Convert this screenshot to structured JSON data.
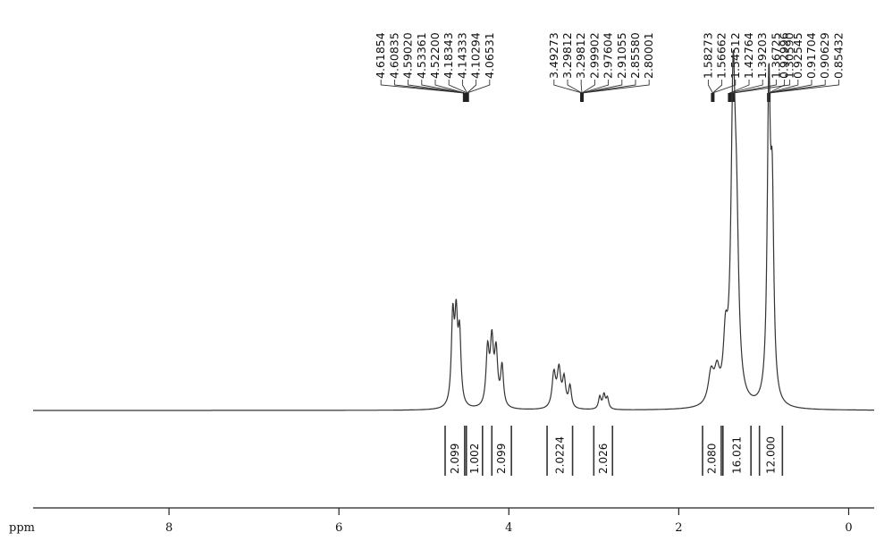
{
  "chart_data": {
    "type": "line",
    "title": "",
    "xlabel": "ppm",
    "ylabel": "",
    "x_reversed": true,
    "xlim": [
      9.6,
      -0.3
    ],
    "x_ticks": [
      8,
      6,
      4,
      2,
      0
    ],
    "x_tick_labels": [
      "8",
      "6",
      "4",
      "2",
      "0"
    ],
    "grid": false,
    "signals": [
      {
        "shift": 4.66,
        "height": 0.28,
        "width": 0.02
      },
      {
        "shift": 4.62,
        "height": 0.26,
        "width": 0.02
      },
      {
        "shift": 4.58,
        "height": 0.22,
        "width": 0.02
      },
      {
        "shift": 4.25,
        "height": 0.18,
        "width": 0.022
      },
      {
        "shift": 4.2,
        "height": 0.2,
        "width": 0.022
      },
      {
        "shift": 4.15,
        "height": 0.17,
        "width": 0.022
      },
      {
        "shift": 4.08,
        "height": 0.13,
        "width": 0.02
      },
      {
        "shift": 3.47,
        "height": 0.11,
        "width": 0.025
      },
      {
        "shift": 3.41,
        "height": 0.12,
        "width": 0.025
      },
      {
        "shift": 3.35,
        "height": 0.09,
        "width": 0.022
      },
      {
        "shift": 3.28,
        "height": 0.07,
        "width": 0.02
      },
      {
        "shift": 2.93,
        "height": 0.04,
        "width": 0.018
      },
      {
        "shift": 2.88,
        "height": 0.045,
        "width": 0.018
      },
      {
        "shift": 2.84,
        "height": 0.035,
        "width": 0.018
      },
      {
        "shift": 1.62,
        "height": 0.1,
        "width": 0.04
      },
      {
        "shift": 1.55,
        "height": 0.09,
        "width": 0.035
      },
      {
        "shift": 1.45,
        "height": 0.18,
        "width": 0.03
      },
      {
        "shift": 1.36,
        "height": 0.97,
        "width": 0.03
      },
      {
        "shift": 1.32,
        "height": 0.45,
        "width": 0.03
      },
      {
        "shift": 0.94,
        "height": 0.98,
        "width": 0.022
      },
      {
        "shift": 0.9,
        "height": 0.6,
        "width": 0.022
      }
    ],
    "peak_label_groups": [
      {
        "labels": [
          "4.61854",
          "4.60835",
          "4.59020",
          "4.53361",
          "4.52200",
          "4.18343",
          "4.14333",
          "4.10294",
          "4.06531"
        ],
        "targets": [
          4.52,
          4.49
        ]
      },
      {
        "labels": [
          "3.49273",
          "3.29812",
          "3.29812",
          "2.99902",
          "2.97604",
          "2.91055",
          "2.85580",
          "2.80001"
        ],
        "targets": [
          3.14
        ]
      },
      {
        "labels": [
          "1.58273",
          "1.56662",
          "1.54512",
          "1.42764",
          "1.39203",
          "1.36725",
          "1.30590"
        ],
        "targets": [
          1.6,
          1.4,
          1.36
        ]
      },
      {
        "labels": [
          "0.92996",
          "0.92545",
          "0.91704",
          "0.90629",
          "0.85432"
        ],
        "targets": [
          0.94
        ]
      }
    ],
    "integrals": [
      {
        "label": "2.099",
        "from": 4.75,
        "to": 4.52
      },
      {
        "label": "1.002",
        "from": 4.5,
        "to": 4.31
      },
      {
        "label": "2.099",
        "from": 4.2,
        "to": 3.97
      },
      {
        "label": "2.0224",
        "from": 3.55,
        "to": 3.25
      },
      {
        "label": "2.026",
        "from": 3.0,
        "to": 2.78
      },
      {
        "label": "2.080",
        "from": 1.72,
        "to": 1.5
      },
      {
        "label": "16.021",
        "from": 1.48,
        "to": 1.15
      },
      {
        "label": "12.000",
        "from": 1.05,
        "to": 0.78
      }
    ]
  }
}
